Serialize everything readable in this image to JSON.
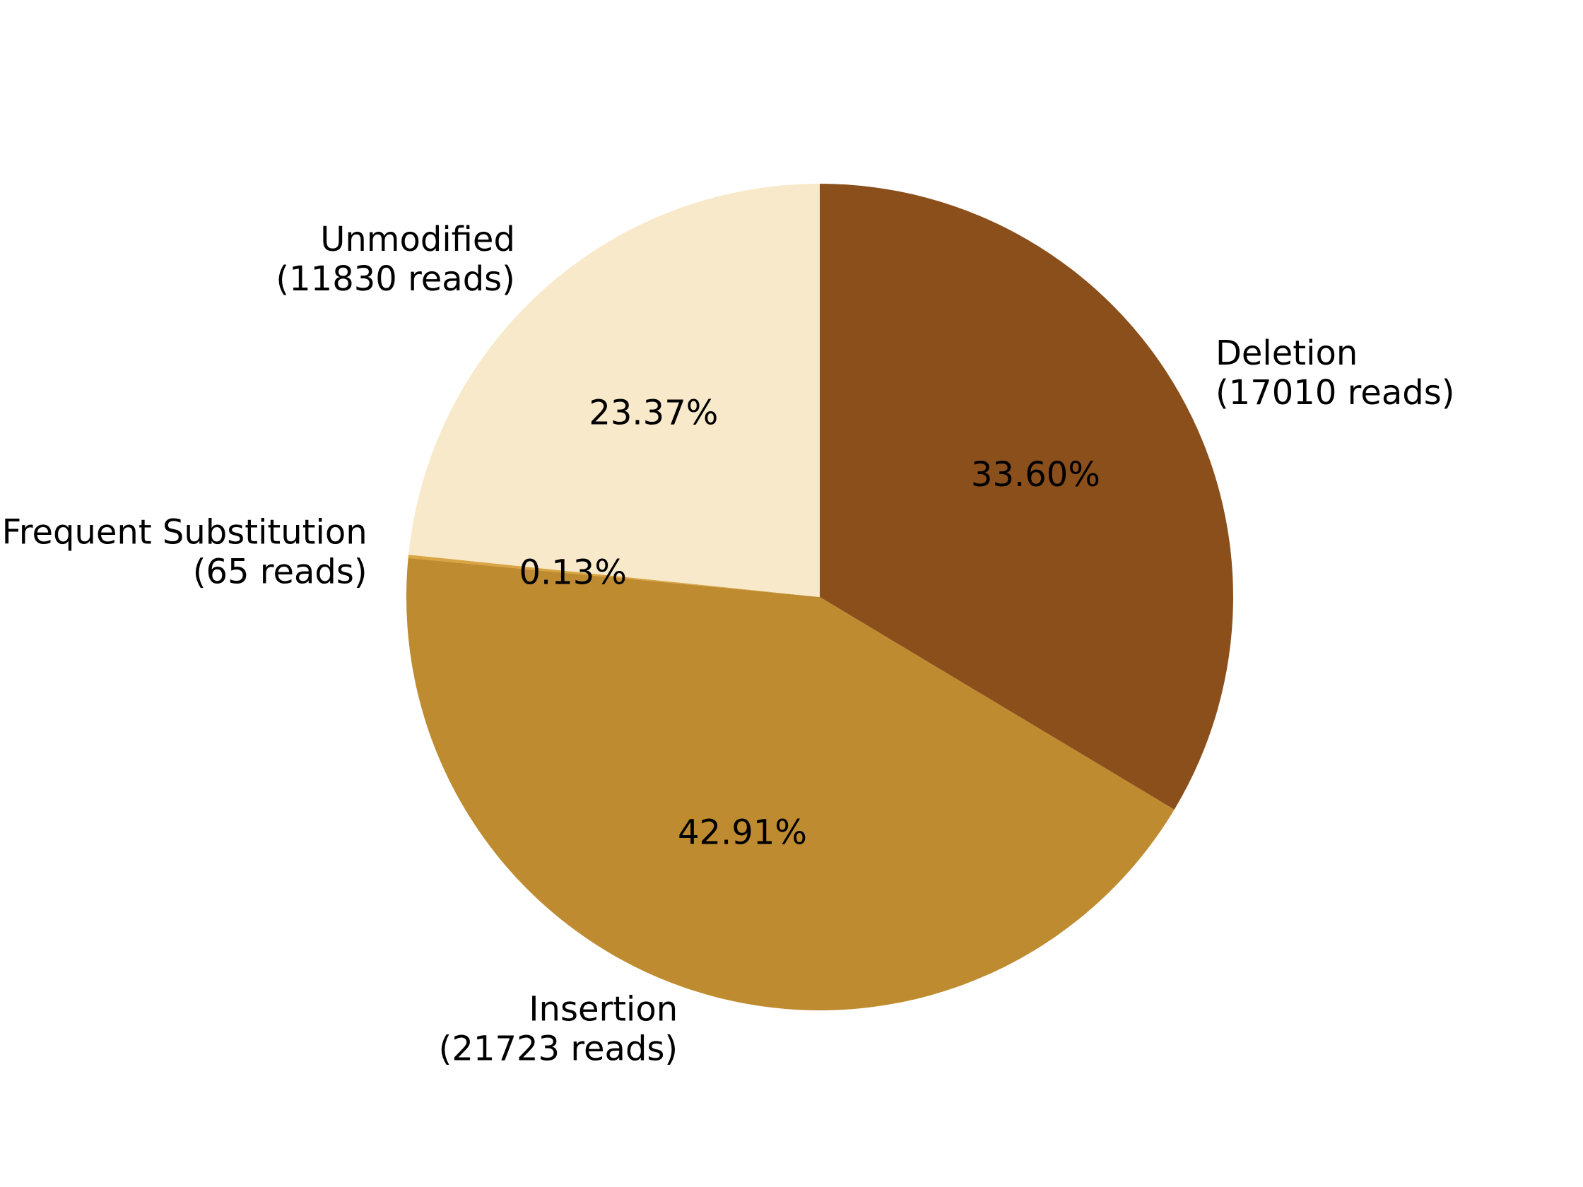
{
  "chart_data": {
    "type": "pie",
    "start_angle_deg": 90,
    "direction": "clockwise",
    "slices": [
      {
        "name": "Deletion",
        "reads_label": "(17010 reads)",
        "reads": 17010,
        "percent_label": "33.60%",
        "percent": 33.6,
        "color": "#8B4F1B"
      },
      {
        "name": "Insertion",
        "reads_label": "(21723 reads)",
        "reads": 21723,
        "percent_label": "42.91%",
        "percent": 42.91,
        "color": "#BE8B31"
      },
      {
        "name": "Frequent Substitution",
        "reads_label": "(65 reads)",
        "reads": 65,
        "percent_label": "0.13%",
        "percent": 0.13,
        "color": "#D9A441"
      },
      {
        "name": "Unmodified",
        "reads_label": "(11830 reads)",
        "reads": 11830,
        "percent_label": "23.37%",
        "percent": 23.37,
        "color": "#F8E9CA"
      }
    ]
  }
}
